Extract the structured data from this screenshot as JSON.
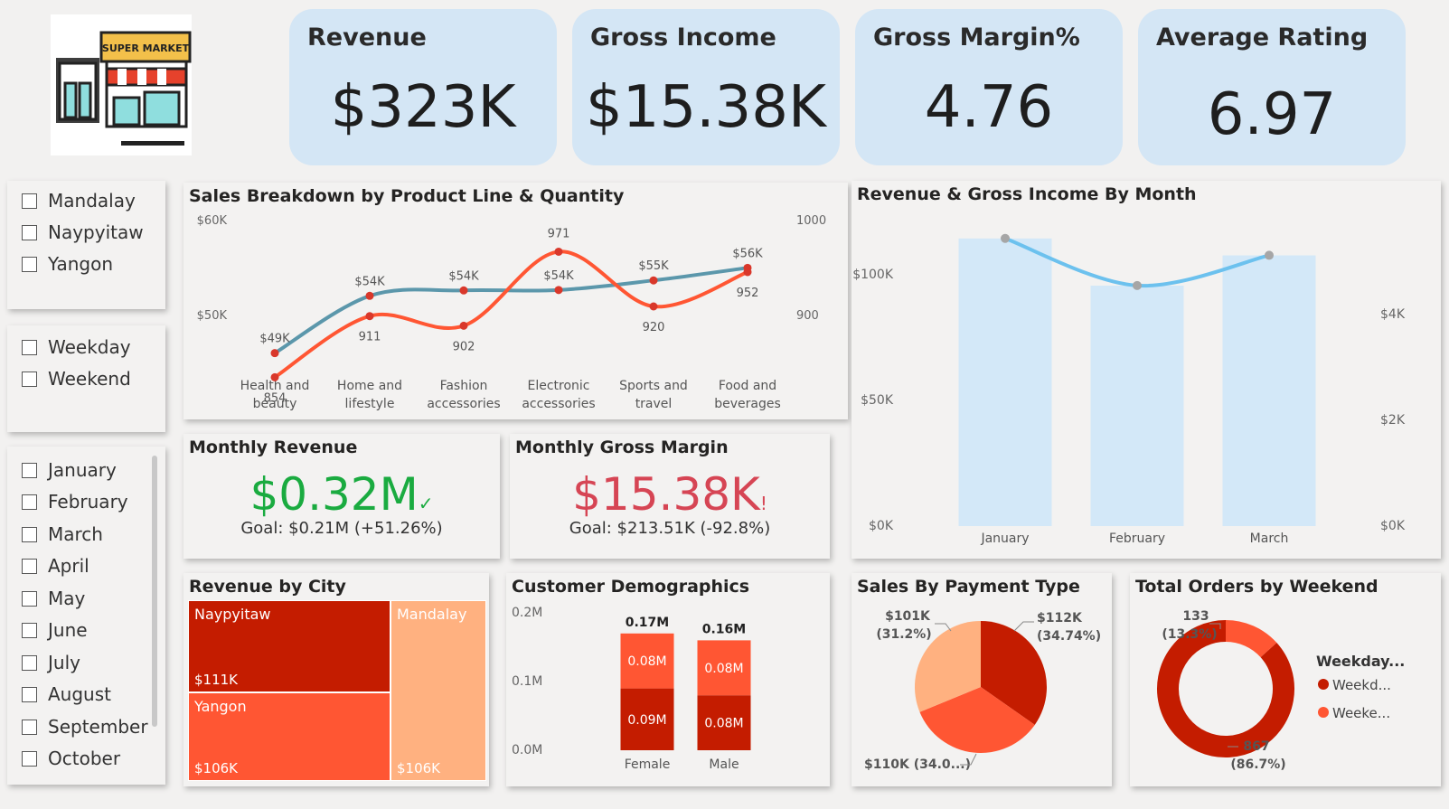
{
  "kpis": [
    {
      "title": "Revenue",
      "value": "$323K"
    },
    {
      "title": "Gross Income",
      "value": "$15.38K"
    },
    {
      "title": "Gross Margin%",
      "value": "4.76"
    },
    {
      "title": "Average Rating",
      "value": "6.97"
    }
  ],
  "logo_text": "SUPER MARKET",
  "slicers": {
    "cities": [
      "Mandalay",
      "Naypyitaw",
      "Yangon"
    ],
    "daytypes": [
      "Weekday",
      "Weekend"
    ],
    "months": [
      "January",
      "February",
      "March",
      "April",
      "May",
      "June",
      "July",
      "August",
      "September",
      "October"
    ]
  },
  "monthly_revenue": {
    "title": "Monthly Revenue",
    "value": "$0.32M",
    "goal": "Goal: $0.21M (+51.26%)",
    "status_color": "#1aab40"
  },
  "monthly_margin": {
    "title": "Monthly Gross Margin",
    "value": "$15.38K",
    "goal": "Goal: $213.51K (-92.8%)",
    "status_color": "#d64554"
  },
  "colors": {
    "dark_red": "#c41c00",
    "orange": "#ff5633",
    "peach": "#ffb180",
    "teal": "#5b97ab",
    "sky": "#6cc1ee",
    "bar_light": "#d3e8f8"
  },
  "chart_data": [
    {
      "type": "line",
      "title": "Sales Breakdown by Product Line & Quantity",
      "categories": [
        "Health and beauty",
        "Home and lifestyle",
        "Fashion accessories",
        "Electronic accessories",
        "Sports and travel",
        "Food and beverages"
      ],
      "series": [
        {
          "axis": "left",
          "values": [
            49193,
            53862,
            54306,
            54338,
            55123,
            56145
          ],
          "labels": [
            "$49K",
            "$54K",
            "$54K",
            "$54K",
            "$55K",
            "$56K"
          ]
        },
        {
          "axis": "right",
          "values": [
            854,
            911,
            902,
            971,
            920,
            952
          ],
          "labels": [
            "854",
            "911",
            "902",
            "971",
            "920",
            "952"
          ]
        }
      ],
      "ylim_left": [
        46000,
        60000
      ],
      "ylim_right": [
        840,
        1000
      ],
      "yticks_left": [
        "$60K",
        "$50K"
      ],
      "yticks_right": [
        "1000",
        "900"
      ]
    },
    {
      "type": "bar",
      "title": "Revenue & Gross Income By Month",
      "categories": [
        "January",
        "February",
        "March"
      ],
      "bars": [
        116292,
        97219,
        109456
      ],
      "line": [
        5537,
        4630,
        5212
      ],
      "ylim_left": [
        0,
        125000
      ],
      "ylim_right": [
        0,
        5950
      ],
      "yticks_left": [
        "$100K",
        "$50K",
        "$0K"
      ],
      "yticks_right": [
        "$4K",
        "$2K",
        "$0K"
      ]
    },
    {
      "type": "treemap",
      "title": "Revenue by City",
      "items": [
        {
          "name": "Naypyitaw",
          "label": "$111K"
        },
        {
          "name": "Yangon",
          "label": "$106K"
        },
        {
          "name": "Mandalay",
          "label": "$106K"
        }
      ]
    },
    {
      "type": "bar",
      "title": "Customer Demographics",
      "categories": [
        "Female",
        "Male"
      ],
      "totals": [
        "0.17M",
        "0.16M"
      ],
      "stacks": [
        {
          "values": [
            0.09,
            0.08
          ],
          "labels": [
            "0.09M",
            "0.08M"
          ]
        },
        {
          "values": [
            0.08,
            0.08
          ],
          "labels": [
            "0.08M",
            "0.08M"
          ]
        }
      ],
      "yticks": [
        "0.2M",
        "0.1M",
        "0.0M"
      ],
      "ylim": [
        0,
        0.2
      ]
    },
    {
      "type": "pie",
      "title": "Sales By Payment Type",
      "slices": [
        {
          "value": 34.74,
          "label": "$112K",
          "pct": "(34.74%)"
        },
        {
          "value": 34.06,
          "label": "$110K (34.0...)"
        },
        {
          "value": 31.2,
          "label": "$101K",
          "pct": "(31.2%)"
        }
      ]
    },
    {
      "type": "pie",
      "title": "Total Orders by Weekend",
      "legend_title": "Weekday...",
      "slices": [
        {
          "name": "Weekd...",
          "value": 867,
          "label": "867",
          "pct": "(86.7%)"
        },
        {
          "name": "Weeke...",
          "value": 133,
          "label": "133",
          "pct": "(13.3%)"
        }
      ]
    }
  ]
}
